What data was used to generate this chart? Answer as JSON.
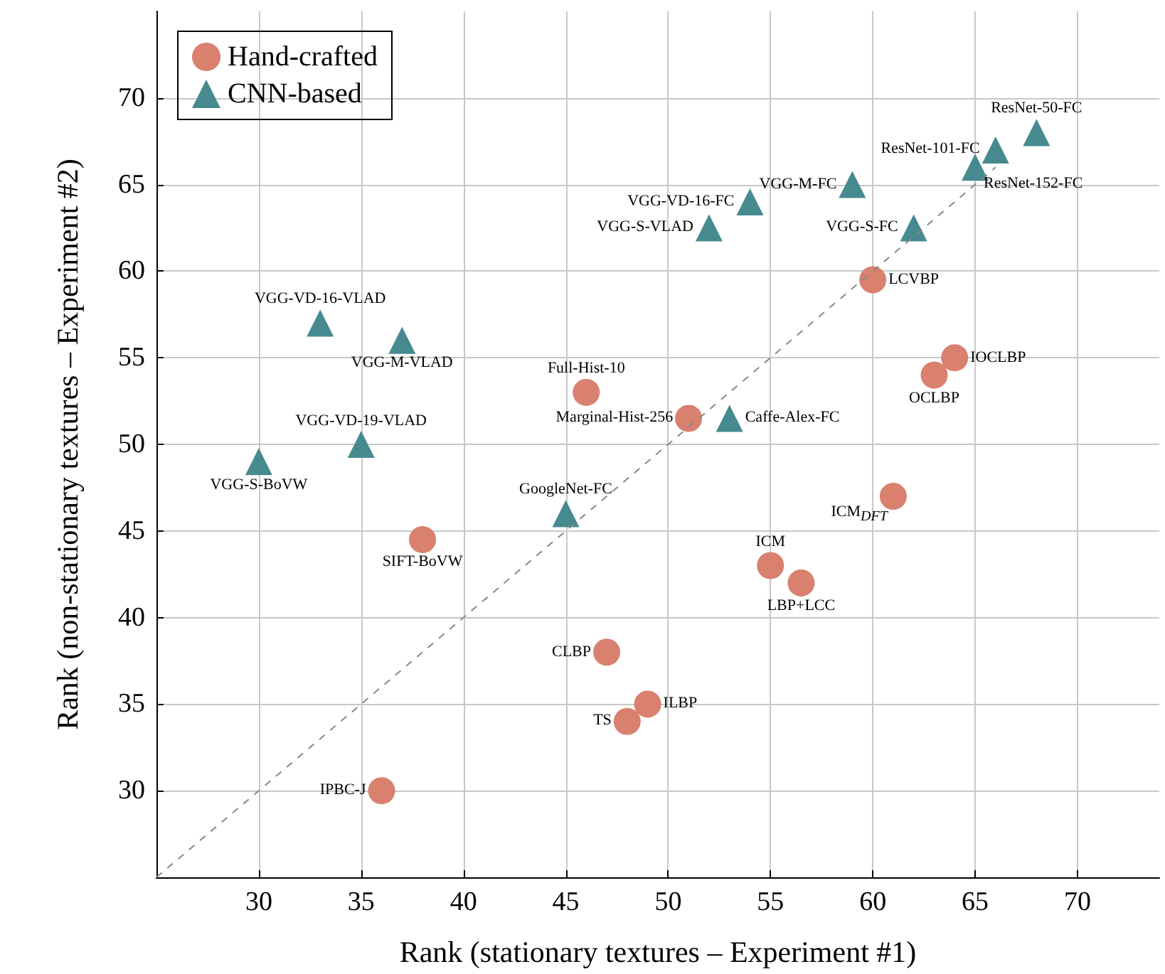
{
  "chart_data": {
    "type": "scatter",
    "xlabel": "Rank (stationary textures – Experiment #1)",
    "ylabel": "Rank (non-stationary textures – Experiment #2)",
    "xlim": [
      25,
      74
    ],
    "ylim": [
      25,
      75
    ],
    "xticks": [
      30,
      35,
      40,
      45,
      50,
      55,
      60,
      65,
      70
    ],
    "yticks": [
      30,
      35,
      40,
      45,
      50,
      55,
      60,
      65,
      70
    ],
    "grid": true,
    "legend": "top left",
    "series": [
      {
        "name": "Hand-crafted",
        "color": "#d9806e",
        "marker": "circle",
        "x": [
          46,
          51,
          60,
          64,
          63,
          61,
          55,
          56.5,
          38,
          47,
          49,
          48,
          36
        ],
        "values": [
          53,
          51.5,
          59.5,
          55,
          54,
          47,
          43,
          42,
          44.5,
          38,
          35,
          34,
          30
        ]
      },
      {
        "name": "CNN-based",
        "color": "#468a8f",
        "marker": "triangle",
        "x": [
          68,
          66,
          65,
          59,
          54,
          52,
          62,
          33,
          37,
          35,
          30,
          45,
          53
        ],
        "values": [
          68,
          67,
          66,
          65,
          64,
          62.5,
          62.5,
          57,
          56,
          50,
          49,
          46,
          51.5
        ]
      },
      {
        "type": "line",
        "color": "#888888",
        "marker": "none",
        "line_style": "dashed",
        "x": [
          25,
          66
        ],
        "values": [
          25,
          66
        ]
      }
    ],
    "annotations": [
      {
        "text": "Full-Hist-10",
        "x": 46,
        "y": 53
      },
      {
        "text": "Marginal-Hist-256",
        "x": 51,
        "y": 51.5
      },
      {
        "text": "LCVBP",
        "x": 60,
        "y": 59.5
      },
      {
        "text": "IOCLBP",
        "x": 64,
        "y": 55
      },
      {
        "text": "OCLBP",
        "x": 63,
        "y": 54
      },
      {
        "text": "ICM$_{DFT}$",
        "x": 61,
        "y": 47
      },
      {
        "text": "ICM",
        "x": 55,
        "y": 43
      },
      {
        "text": "LBP+LCC",
        "x": 56.5,
        "y": 42
      },
      {
        "text": "SIFT-BoVW",
        "x": 38,
        "y": 44.5
      },
      {
        "text": "CLBP",
        "x": 47,
        "y": 38
      },
      {
        "text": "ILBP",
        "x": 49,
        "y": 35
      },
      {
        "text": "TS",
        "x": 48,
        "y": 34
      },
      {
        "text": "IPBC-J",
        "x": 36,
        "y": 30
      },
      {
        "text": "ResNet-50-FC",
        "x": 68,
        "y": 68
      },
      {
        "text": "ResNet-101-FC",
        "x": 66,
        "y": 67
      },
      {
        "text": "ResNet-152-FC",
        "x": 65,
        "y": 66
      },
      {
        "text": "VGG-M-FC",
        "x": 59,
        "y": 65
      },
      {
        "text": "VGG-VD-16-FC",
        "x": 54,
        "y": 64
      },
      {
        "text": "VGG-S-VLAD",
        "x": 52,
        "y": 62.5
      },
      {
        "text": "VGG-S-FC",
        "x": 62,
        "y": 62.5
      },
      {
        "text": "VGG-VD-16-VLAD",
        "x": 33,
        "y": 57
      },
      {
        "text": "VGG-M-VLAD",
        "x": 37,
        "y": 56
      },
      {
        "text": "VGG-VD-19-VLAD",
        "x": 35,
        "y": 50
      },
      {
        "text": "VGG-S-BoVW",
        "x": 30,
        "y": 49
      },
      {
        "text": "GoogleNet-FC",
        "x": 45,
        "y": 46
      },
      {
        "text": "Caffe-Alex-FC",
        "x": 53,
        "y": 51.5
      }
    ]
  }
}
